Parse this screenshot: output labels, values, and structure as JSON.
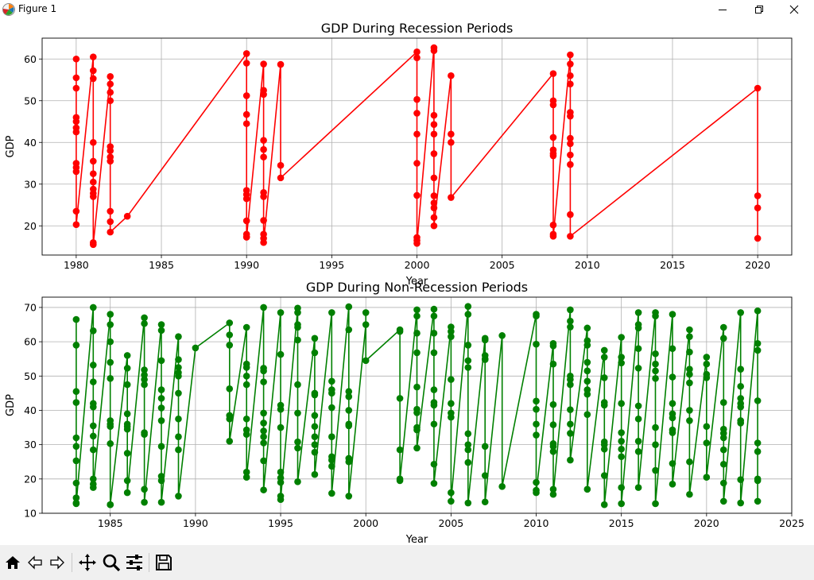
{
  "window": {
    "title": "Figure 1"
  },
  "toolbar": {
    "buttons": [
      "home-icon",
      "back-icon",
      "forward-icon",
      "pan-icon",
      "zoom-icon",
      "configure-subplots-icon",
      "save-icon"
    ]
  },
  "chart_data": [
    {
      "type": "line",
      "title": "GDP During Recession Periods",
      "xlabel": "Year",
      "ylabel": "GDP",
      "xlim": [
        1978,
        2022
      ],
      "ylim": [
        13,
        65
      ],
      "xticks": [
        1980,
        1985,
        1990,
        1995,
        2000,
        2005,
        2010,
        2015,
        2020
      ],
      "yticks": [
        20,
        30,
        40,
        50,
        60
      ],
      "grid": true,
      "color": "#ff0000",
      "marker": "circle",
      "series": [
        {
          "x": [
            1980,
            1980,
            1980,
            1980,
            1980,
            1980,
            1980,
            1980,
            1980,
            1980,
            1980,
            1980,
            1981,
            1981,
            1981,
            1981,
            1981,
            1981,
            1981,
            1981,
            1981,
            1981,
            1981,
            1981,
            1982,
            1982,
            1982,
            1982,
            1982,
            1982,
            1982,
            1982,
            1982,
            1982,
            1982,
            1983,
            1990,
            1990,
            1990,
            1990,
            1990,
            1990,
            1990,
            1990,
            1990,
            1990,
            1990,
            1990,
            1991,
            1991,
            1991,
            1991,
            1991,
            1991,
            1991,
            1991,
            1991,
            1991,
            1991,
            1991,
            1992,
            1992,
            1992,
            2000,
            2000,
            2000,
            2000,
            2000,
            2000,
            2000,
            2000,
            2000,
            2000,
            2001,
            2001,
            2001,
            2001,
            2001,
            2001,
            2001,
            2001,
            2001,
            2001,
            2001,
            2001,
            2002,
            2002,
            2002,
            2002,
            2008,
            2008,
            2008,
            2008,
            2008,
            2008,
            2008,
            2008,
            2008,
            2008,
            2009,
            2009,
            2009,
            2009,
            2009,
            2009,
            2009,
            2009,
            2009,
            2009,
            2009,
            2009,
            2020,
            2020,
            2020,
            2020
          ],
          "y": [
            60,
            55.5,
            53,
            46,
            45,
            43.5,
            42.5,
            35,
            34,
            33,
            23.5,
            20.3,
            60.5,
            57.2,
            55.3,
            40,
            35.5,
            32.5,
            30.5,
            28.8,
            27.8,
            27,
            16,
            15.5,
            55.8,
            54,
            52,
            50,
            39,
            38,
            36.5,
            35.5,
            23.5,
            21,
            18.5,
            22.3,
            61.3,
            59,
            51.2,
            46.7,
            44.5,
            28.5,
            27.5,
            26.5,
            21.2,
            18,
            17.3,
            17.3,
            58.8,
            52.5,
            51.5,
            40.5,
            38.3,
            36.5,
            28,
            27,
            21.3,
            18,
            17,
            16,
            58.7,
            34.5,
            31.5,
            61.7,
            60.3,
            50.3,
            47,
            42,
            35,
            27.3,
            17.2,
            16.5,
            15.8,
            62.7,
            62,
            46.5,
            44.3,
            42,
            37.3,
            31.5,
            27.2,
            25.5,
            24.3,
            22,
            20,
            56,
            42,
            40,
            26.8,
            56.5,
            50,
            49,
            41.2,
            38.2,
            37.3,
            36.8,
            20.2,
            18,
            17.5,
            61,
            58.8,
            56,
            54,
            47.2,
            46.3,
            41,
            39.7,
            37,
            34.7,
            22.7,
            17.5,
            53,
            27.2,
            24.3,
            17
          ]
        }
      ]
    },
    {
      "type": "line",
      "title": "GDP During Non-Recession Periods",
      "xlabel": "Year",
      "ylabel": "GDP",
      "xlim": [
        1981,
        2025
      ],
      "ylim": [
        10,
        73
      ],
      "xticks": [
        1985,
        1990,
        1995,
        2000,
        2005,
        2010,
        2015,
        2020,
        2025
      ],
      "yticks": [
        10,
        20,
        30,
        40,
        50,
        60,
        70
      ],
      "grid": true,
      "color": "#008000",
      "marker": "circle",
      "series": [
        {
          "x": [
            1983,
            1983,
            1983,
            1983,
            1983,
            1983,
            1983,
            1983,
            1983,
            1983,
            1983,
            1984,
            1984,
            1984,
            1984,
            1984,
            1984,
            1984,
            1984,
            1984,
            1984,
            1984,
            1984,
            1985,
            1985,
            1985,
            1985,
            1985,
            1985,
            1985,
            1985,
            1985,
            1985,
            1985,
            1986,
            1986,
            1986,
            1986,
            1986,
            1986,
            1986,
            1986,
            1986,
            1986,
            1987,
            1987,
            1987,
            1987,
            1987,
            1987,
            1987,
            1987,
            1987,
            1987,
            1988,
            1988,
            1988,
            1988,
            1988,
            1988,
            1988,
            1988,
            1988,
            1988,
            1988,
            1989,
            1989,
            1989,
            1989,
            1989,
            1989,
            1989,
            1989,
            1989,
            1989,
            1990,
            1992,
            1992,
            1992,
            1992,
            1992,
            1992,
            1992,
            1993,
            1993,
            1993,
            1993,
            1993,
            1993,
            1993,
            1993,
            1993,
            1993,
            1994,
            1994,
            1994,
            1994,
            1994,
            1994,
            1994,
            1994,
            1994,
            1994,
            1994,
            1995,
            1995,
            1995,
            1995,
            1995,
            1995,
            1995,
            1995,
            1995,
            1995,
            1996,
            1996,
            1996,
            1996,
            1996,
            1996,
            1996,
            1996,
            1996,
            1996,
            1997,
            1997,
            1997,
            1997,
            1997,
            1997,
            1997,
            1997,
            1997,
            1997,
            1998,
            1998,
            1998,
            1998,
            1998,
            1998,
            1998,
            1998,
            1998,
            1998,
            1999,
            1999,
            1999,
            1999,
            1999,
            1999,
            1999,
            1999,
            1999,
            1999,
            2000,
            2000,
            2000,
            2002,
            2002,
            2002,
            2002,
            2002,
            2002,
            2003,
            2003,
            2003,
            2003,
            2003,
            2003,
            2003,
            2003,
            2003,
            2003,
            2004,
            2004,
            2004,
            2004,
            2004,
            2004,
            2004,
            2004,
            2004,
            2004,
            2005,
            2005,
            2005,
            2005,
            2005,
            2005,
            2005,
            2005,
            2005,
            2006,
            2006,
            2006,
            2006,
            2006,
            2006,
            2006,
            2006,
            2006,
            2006,
            2007,
            2007,
            2007,
            2007,
            2007,
            2007,
            2007,
            2007,
            2008,
            2008,
            2010,
            2010,
            2010,
            2010,
            2010,
            2010,
            2010,
            2010,
            2010,
            2010,
            2011,
            2011,
            2011,
            2011,
            2011,
            2011,
            2011,
            2011,
            2011,
            2011,
            2012,
            2012,
            2012,
            2012,
            2012,
            2012,
            2012,
            2012,
            2012,
            2012,
            2013,
            2013,
            2013,
            2013,
            2013,
            2013,
            2013,
            2013,
            2013,
            2013,
            2014,
            2014,
            2014,
            2014,
            2014,
            2014,
            2014,
            2014,
            2014,
            2014,
            2015,
            2015,
            2015,
            2015,
            2015,
            2015,
            2015,
            2015,
            2015,
            2015,
            2016,
            2016,
            2016,
            2016,
            2016,
            2016,
            2016,
            2016,
            2016,
            2016,
            2017,
            2017,
            2017,
            2017,
            2017,
            2017,
            2017,
            2017,
            2017,
            2017,
            2018,
            2018,
            2018,
            2018,
            2018,
            2018,
            2018,
            2018,
            2018,
            2018,
            2019,
            2019,
            2019,
            2019,
            2019,
            2019,
            2019,
            2019,
            2019,
            2019,
            2020,
            2020,
            2020,
            2020,
            2020,
            2020,
            2020,
            2021,
            2021,
            2021,
            2021,
            2021,
            2021,
            2021,
            2021,
            2021,
            2021,
            2022,
            2022,
            2022,
            2022,
            2022,
            2022,
            2022,
            2022,
            2022,
            2022,
            2023,
            2023,
            2023,
            2023,
            2023,
            2023,
            2023,
            2023,
            2023
          ],
          "y": [
            66.5,
            59,
            45.5,
            42.3,
            32,
            29.5,
            25.3,
            18.8,
            14.5,
            13,
            12.8,
            70,
            63.2,
            53.2,
            48.3,
            42,
            41,
            35.5,
            32.5,
            28.5,
            20,
            18.5,
            17.5,
            68,
            65,
            60,
            54,
            49.3,
            37,
            36,
            35.3,
            30.3,
            12.5,
            12.5,
            56,
            52.3,
            47.5,
            39,
            36,
            35.3,
            34.5,
            27.5,
            19.5,
            16,
            67,
            65.3,
            51.8,
            50.3,
            49,
            47.5,
            33.5,
            33,
            17,
            13.2,
            65,
            63.3,
            54.5,
            46,
            43.5,
            40.7,
            37,
            29.5,
            20.8,
            19.5,
            13.2,
            61.5,
            54.8,
            52.5,
            51,
            50,
            45,
            37.5,
            32.3,
            28.5,
            15,
            58.2,
            65.5,
            62,
            59,
            46.3,
            38.5,
            37.5,
            31,
            64.2,
            53.5,
            52.5,
            50,
            47.5,
            37.5,
            34.3,
            33,
            22,
            20.5,
            70,
            52.3,
            51.5,
            48.3,
            39.2,
            36.3,
            34,
            32.3,
            30.5,
            25.3,
            16.8,
            68.5,
            56.3,
            41.5,
            40.3,
            35,
            22,
            20.3,
            19,
            15,
            14,
            69.8,
            68.5,
            65,
            64.2,
            60.5,
            47.5,
            39.2,
            30.8,
            29,
            19.2,
            61,
            56.8,
            45,
            44.5,
            38.5,
            35.3,
            32.3,
            30,
            27.8,
            21.3,
            68.5,
            48.5,
            46,
            45,
            40.8,
            32.3,
            26.5,
            25.5,
            23.7,
            15.8,
            70.2,
            63.5,
            45.5,
            44,
            40,
            36,
            35.5,
            26,
            25,
            15,
            65,
            68.5,
            54.5,
            63.5,
            63,
            43.5,
            28.5,
            20,
            19.5,
            69.3,
            67.5,
            62.5,
            56.8,
            46.8,
            40.3,
            39.3,
            35,
            34.3,
            29,
            69.5,
            67.5,
            62.5,
            56.8,
            46,
            42.3,
            41.5,
            36,
            24.3,
            18.7,
            64.3,
            63,
            61.5,
            49,
            42,
            39.2,
            38,
            16,
            13.5,
            70.3,
            68,
            59,
            54.5,
            52.5,
            33.2,
            30,
            28.5,
            24.8,
            13,
            61,
            60.5,
            56,
            55,
            54.8,
            29.5,
            21,
            13.3,
            61.8,
            17.8,
            68,
            67.5,
            59.3,
            42.7,
            40.3,
            36,
            32.8,
            19,
            16.7,
            16,
            59.5,
            58.8,
            53.5,
            41.7,
            35.8,
            30.3,
            29.5,
            28,
            17,
            15.5,
            69.3,
            66,
            64.3,
            50,
            49,
            47.5,
            40.2,
            36,
            33.3,
            25.5,
            64,
            60.3,
            59,
            54,
            51.5,
            48.5,
            46,
            44.7,
            38.8,
            17,
            57.5,
            55.5,
            49.5,
            42.3,
            41.5,
            30.8,
            30,
            28.7,
            21,
            12.5,
            61.3,
            55.5,
            53.8,
            42,
            33.5,
            31,
            28.7,
            26.5,
            17.5,
            12.8,
            68.5,
            65,
            64,
            58,
            52.3,
            41.3,
            37.5,
            31,
            28,
            17.5,
            68.5,
            67.5,
            56.5,
            53.5,
            51.5,
            49.3,
            35,
            30,
            22.5,
            12.8,
            68,
            58,
            49.7,
            42,
            39,
            37.8,
            34.3,
            33.5,
            24.5,
            18.5,
            63.5,
            61.5,
            57,
            52,
            50.5,
            48,
            40,
            37,
            25,
            15.5,
            55.5,
            53.5,
            50.5,
            49.5,
            35.3,
            30.5,
            20.5,
            64.2,
            61,
            42.3,
            34.5,
            33.3,
            32,
            28.5,
            24.3,
            18.8,
            13.5,
            68.5,
            52,
            47,
            43.5,
            42,
            41,
            37,
            36.3,
            19.8,
            13,
            69,
            59.5,
            57.5,
            42.8,
            30.5,
            28,
            20,
            19.5,
            13.5
          ]
        }
      ]
    }
  ]
}
